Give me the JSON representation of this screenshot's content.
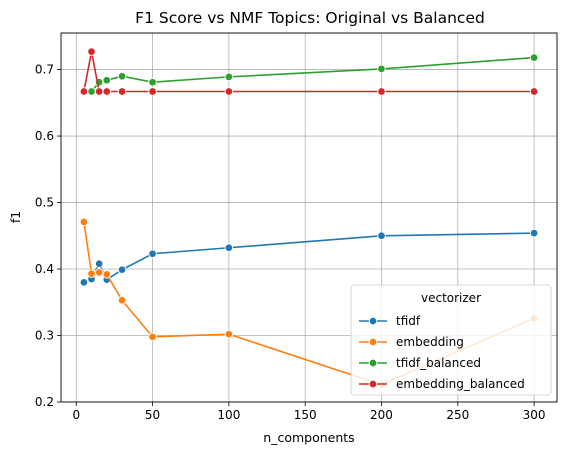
{
  "chart_data": {
    "type": "line",
    "title": "F1 Score vs NMF Topics: Original vs Balanced",
    "xlabel": "n_components",
    "ylabel": "f1",
    "xlim": [
      -10,
      315
    ],
    "ylim": [
      0.2,
      0.755
    ],
    "xticks": [
      0,
      50,
      100,
      150,
      200,
      250,
      300
    ],
    "yticks": [
      0.2,
      0.3,
      0.4,
      0.5,
      0.6,
      0.7
    ],
    "grid": true,
    "markers": "circle",
    "legend": {
      "title": "vectorizer",
      "position": "bottom-right"
    },
    "x": [
      5,
      10,
      15,
      20,
      30,
      50,
      100,
      200,
      300
    ],
    "series": [
      {
        "name": "tfidf",
        "color": "#1f77b4",
        "values": [
          0.38,
          0.385,
          0.408,
          0.384,
          0.399,
          0.423,
          0.432,
          0.45,
          0.454
        ]
      },
      {
        "name": "embedding",
        "color": "#ff7f0e",
        "values": [
          0.471,
          0.393,
          0.395,
          0.392,
          0.353,
          0.298,
          0.302,
          0.226,
          0.326
        ]
      },
      {
        "name": "tfidf_balanced",
        "color": "#2ca02c",
        "values": [
          0.667,
          0.667,
          0.681,
          0.684,
          0.69,
          0.681,
          0.689,
          0.701,
          0.718
        ]
      },
      {
        "name": "embedding_balanced",
        "color": "#d62728",
        "values": [
          0.667,
          0.727,
          0.667,
          0.667,
          0.667,
          0.667,
          0.667,
          0.667,
          0.667
        ]
      }
    ]
  }
}
